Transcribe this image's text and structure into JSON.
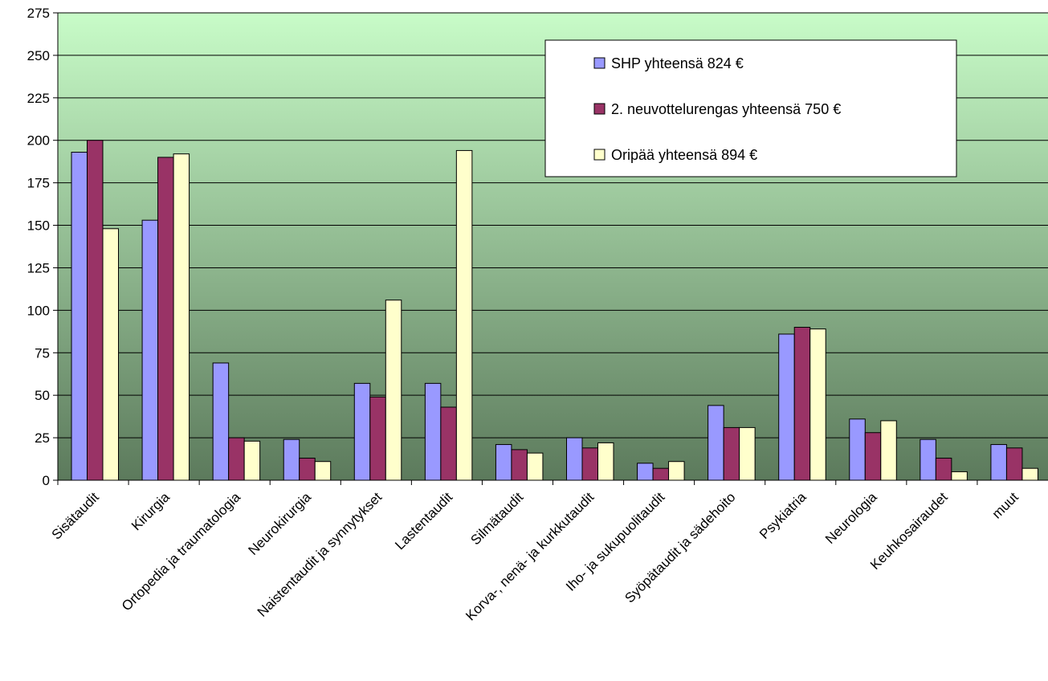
{
  "chart_data": {
    "type": "bar",
    "title": "",
    "xlabel": "",
    "ylabel": "",
    "ylim": [
      0,
      275
    ],
    "y_ticks": [
      "0",
      "25",
      "50",
      "75",
      "100",
      "125",
      "150",
      "175",
      "200",
      "225",
      "250",
      "275"
    ],
    "grid": true,
    "legend_position": "top-right",
    "categories": [
      "Sisätaudit",
      "Kirurgia",
      "Ortopedia ja traumatologia",
      "Neurokirurgia",
      "Naistentaudit ja synnytykset",
      "Lastentaudit",
      "Silmätaudit",
      "Korva-, nenä- ja kurkkutaudit",
      "Iho- ja sukupuolitaudit",
      "Syöpätaudit ja sädehoito",
      "Psykiatria",
      "Neurologia",
      "Keuhkosairaudet",
      "muut"
    ],
    "series": [
      {
        "name": "SHP yhteensä 824 €",
        "color": "#9999ff",
        "values": [
          193,
          153,
          69,
          24,
          57,
          57,
          21,
          25,
          10,
          44,
          86,
          36,
          24,
          21
        ]
      },
      {
        "name": "2. neuvottelurengas yhteensä 750 €",
        "color": "#993366",
        "values": [
          200,
          190,
          25,
          13,
          49,
          43,
          18,
          19,
          7,
          31,
          90,
          28,
          13,
          19
        ]
      },
      {
        "name": "Oripää yhteensä 894 €",
        "color": "#ffffcc",
        "values": [
          148,
          192,
          23,
          11,
          106,
          194,
          16,
          22,
          11,
          31,
          89,
          35,
          5,
          7
        ]
      }
    ],
    "colors": {
      "plot_top": "#c8fcc8",
      "plot_bottom": "#5c7a5c",
      "gridline": "#000000",
      "bar_stroke": "#000000"
    }
  }
}
